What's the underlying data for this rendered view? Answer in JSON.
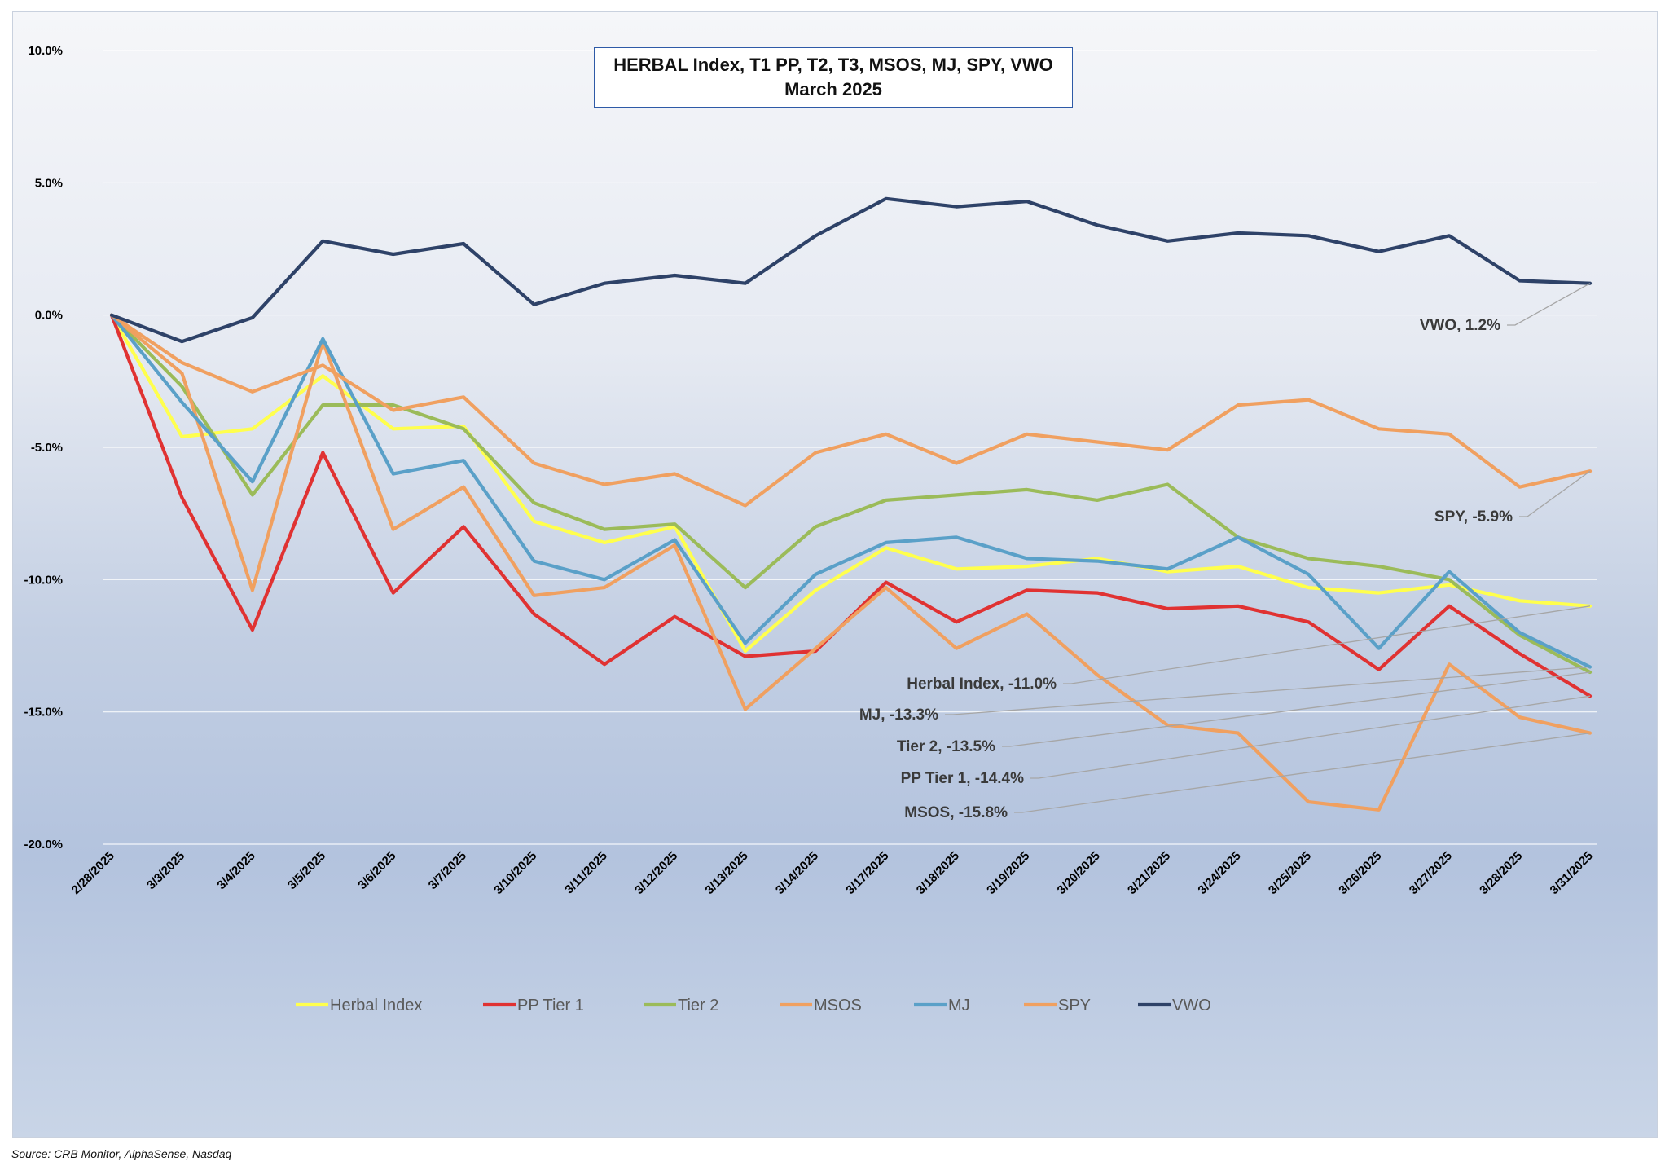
{
  "chart_data": {
    "type": "line",
    "title": "HERBAL Index, T1 PP, T2, T3, MSOS, MJ, SPY, VWO",
    "subtitle": "March 2025",
    "xlabel": "",
    "ylabel": "",
    "ylim": [
      -20,
      10
    ],
    "yticks": [
      "10.0%",
      "5.0%",
      "0.0%",
      "-5.0%",
      "-10.0%",
      "-15.0%",
      "-20.0%"
    ],
    "ytick_values": [
      10,
      5,
      0,
      -5,
      -10,
      -15,
      -20
    ],
    "grid": true,
    "legend_position": "bottom",
    "x": [
      "2/28/2025",
      "3/3/2025",
      "3/4/2025",
      "3/5/2025",
      "3/6/2025",
      "3/7/2025",
      "3/10/2025",
      "3/11/2025",
      "3/12/2025",
      "3/13/2025",
      "3/14/2025",
      "3/17/2025",
      "3/18/2025",
      "3/19/2025",
      "3/20/2025",
      "3/21/2025",
      "3/24/2025",
      "3/25/2025",
      "3/26/2025",
      "3/27/2025",
      "3/28/2025",
      "3/31/2025"
    ],
    "series": [
      {
        "name": "Herbal Index",
        "color": "#ffff4d",
        "values": [
          0,
          -4.6,
          -4.3,
          -2.3,
          -4.3,
          -4.2,
          -7.8,
          -8.6,
          -8.0,
          -12.7,
          -10.4,
          -8.8,
          -9.6,
          -9.5,
          -9.2,
          -9.7,
          -9.5,
          -10.3,
          -10.5,
          -10.2,
          -10.8,
          -11.0
        ]
      },
      {
        "name": "PP Tier 1",
        "color": "#e03232",
        "values": [
          0,
          -6.9,
          -11.9,
          -5.2,
          -10.5,
          -8.0,
          -11.3,
          -13.2,
          -11.4,
          -12.9,
          -12.7,
          -10.1,
          -11.6,
          -10.4,
          -10.5,
          -11.1,
          -11.0,
          -11.6,
          -13.4,
          -11.0,
          -12.8,
          -14.4
        ]
      },
      {
        "name": "Tier 2",
        "color": "#9bbb59",
        "values": [
          0,
          -2.7,
          -6.8,
          -3.4,
          -3.4,
          -4.3,
          -7.1,
          -8.1,
          -7.9,
          -10.3,
          -8.0,
          -7.0,
          -6.8,
          -6.6,
          -7.0,
          -6.4,
          -8.4,
          -9.2,
          -9.5,
          -10.0,
          -12.1,
          -13.5
        ]
      },
      {
        "name": "MSOS",
        "color": "#f0a060",
        "values": [
          0,
          -2.2,
          -10.4,
          -1.0,
          -8.1,
          -6.5,
          -10.6,
          -10.3,
          -8.7,
          -14.9,
          -12.6,
          -10.3,
          -12.6,
          -11.3,
          -13.6,
          -15.5,
          -15.8,
          -18.4,
          -18.7,
          -13.2,
          -15.2,
          -15.8
        ]
      },
      {
        "name": "MJ",
        "color": "#5aa0c8",
        "values": [
          0,
          -3.3,
          -6.3,
          -0.9,
          -6.0,
          -5.5,
          -9.3,
          -10.0,
          -8.5,
          -12.4,
          -9.8,
          -8.6,
          -8.4,
          -9.2,
          -9.3,
          -9.6,
          -8.4,
          -9.8,
          -12.6,
          -9.7,
          -12.0,
          -13.3
        ]
      },
      {
        "name": "SPY",
        "color": "#f0a060",
        "values": [
          0,
          -1.8,
          -2.9,
          -1.9,
          -3.6,
          -3.1,
          -5.6,
          -6.4,
          -6.0,
          -7.2,
          -5.2,
          -4.5,
          -5.6,
          -4.5,
          -4.8,
          -5.1,
          -3.4,
          -3.2,
          -4.3,
          -4.5,
          -6.5,
          -5.9
        ]
      },
      {
        "name": "VWO",
        "color": "#2e4268",
        "values": [
          0,
          -1.0,
          -0.1,
          2.8,
          2.3,
          2.7,
          0.4,
          1.2,
          1.5,
          1.2,
          3.0,
          4.4,
          4.1,
          4.3,
          3.4,
          2.8,
          3.1,
          3.0,
          2.4,
          3.0,
          1.3,
          1.2
        ]
      }
    ],
    "annotations": [
      {
        "text": "VWO, 1.2%",
        "series": "VWO",
        "value": 1.2
      },
      {
        "text": "SPY, -5.9%",
        "series": "SPY",
        "value": -5.9
      },
      {
        "text": "Herbal Index, -11.0%",
        "series": "Herbal Index",
        "value": -11.0
      },
      {
        "text": "MJ, -13.3%",
        "series": "MJ",
        "value": -13.3
      },
      {
        "text": "Tier 2, -13.5%",
        "series": "Tier 2",
        "value": -13.5
      },
      {
        "text": "PP Tier 1, -14.4%",
        "series": "PP Tier 1",
        "value": -14.4
      },
      {
        "text": "MSOS, -15.8%",
        "series": "MSOS",
        "value": -15.8
      }
    ],
    "source": "Source: CRB Monitor, AlphaSense, Nasdaq"
  }
}
